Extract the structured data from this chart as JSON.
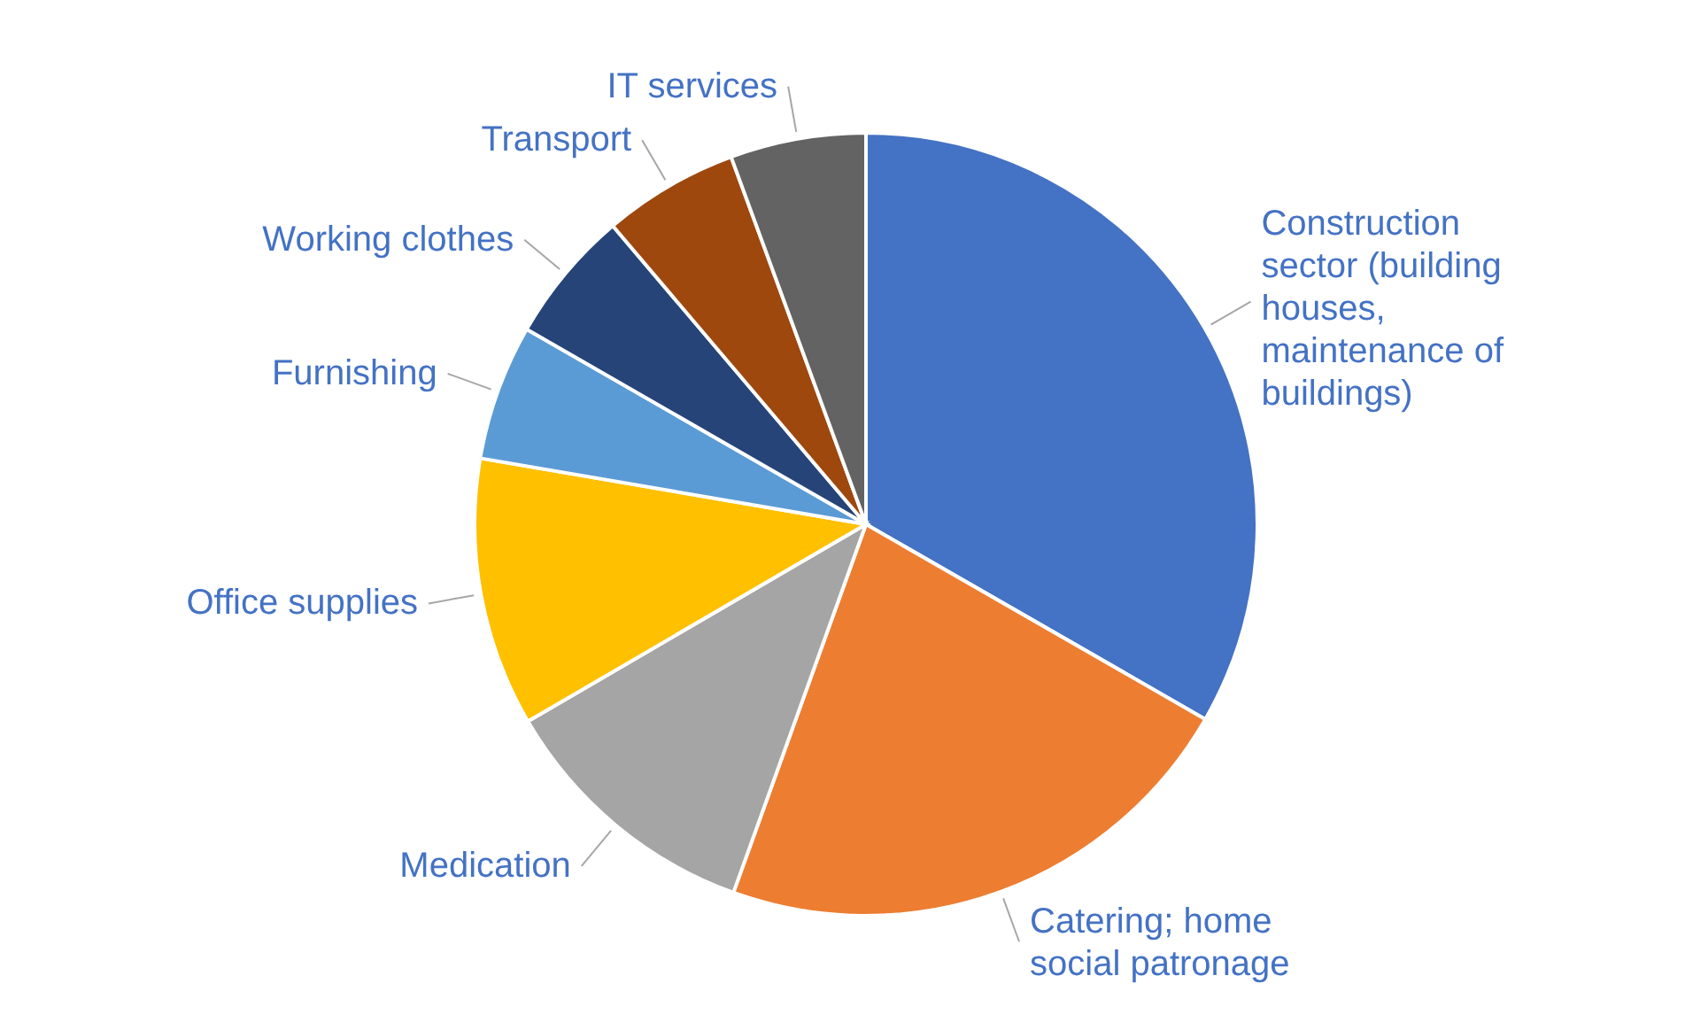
{
  "chart_data": {
    "type": "pie",
    "categories": [
      "Construction sector (building houses, maintenance of buildings)",
      "Catering; home social patronage",
      "Medication",
      "Office supplies",
      "Furnishing",
      "Working clothes",
      "Transport",
      "IT services"
    ],
    "values": [
      33.3,
      22.2,
      11.1,
      11.1,
      5.6,
      5.5,
      5.6,
      5.6
    ],
    "colors": [
      "#4472c4",
      "#ed7d31",
      "#a5a5a5",
      "#ffc000",
      "#5b9bd5",
      "#264478",
      "#9e480e",
      "#636363"
    ]
  }
}
